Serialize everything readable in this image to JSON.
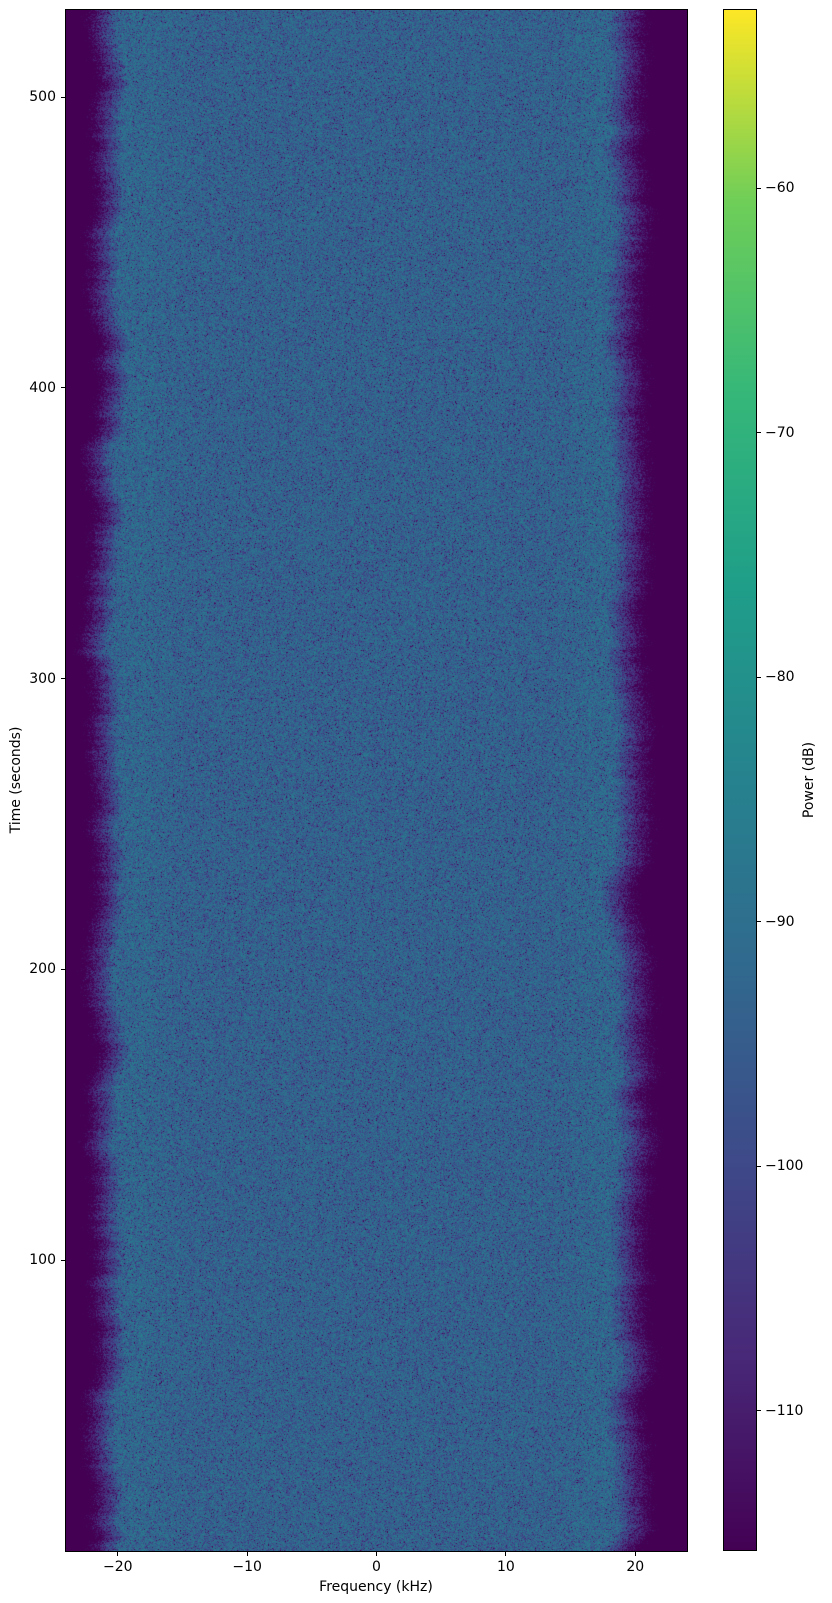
{
  "chart_data": {
    "type": "heatmap",
    "title": "",
    "xlabel": "Frequency (kHz)",
    "ylabel": "Time (seconds)",
    "colorbar_label": "Power (dB)",
    "xlim": [
      -24,
      24
    ],
    "ylim": [
      0,
      530
    ],
    "grid": false,
    "x_ticks": {
      "values": [
        -20,
        -10,
        0,
        10,
        20
      ],
      "labels": [
        "−20",
        "−10",
        "0",
        "10",
        "20"
      ]
    },
    "y_ticks": {
      "values": [
        100,
        200,
        300,
        400,
        500
      ],
      "labels": [
        "100",
        "200",
        "300",
        "400",
        "500"
      ]
    },
    "colorbar": {
      "vmin": -115.7,
      "vmax": -52.7,
      "tick_values": [
        -60,
        -70,
        -80,
        -90,
        -100,
        -110
      ],
      "tick_labels": [
        "−60",
        "−70",
        "−80",
        "−90",
        "−100",
        "−110"
      ],
      "colormap": "viridis",
      "colormap_stops": [
        {
          "t": 0.0,
          "color": "#440154"
        },
        {
          "t": 0.125,
          "color": "#482878"
        },
        {
          "t": 0.25,
          "color": "#3e4989"
        },
        {
          "t": 0.375,
          "color": "#31688e"
        },
        {
          "t": 0.5,
          "color": "#26828e"
        },
        {
          "t": 0.625,
          "color": "#1f9e89"
        },
        {
          "t": 0.75,
          "color": "#35b779"
        },
        {
          "t": 0.875,
          "color": "#6ece58"
        },
        {
          "t": 1.0,
          "color": "#fde725"
        }
      ]
    },
    "heatmap_model": {
      "passband_level_db": -91.5,
      "left_pass_khz": -19.9,
      "left_slope_db_per_khz": 11,
      "right_pass_khz": 18.0,
      "right_slope_db_per_khz": 9,
      "bump_left_khz": -18.5,
      "bump_right_khz": 17.5,
      "bump_db": 1.3,
      "bump_sigma_khz": 1.8,
      "edge_wander_khz": 1.0,
      "noise": "rayleigh-power speckle, ~6 dB spread"
    }
  },
  "colors": {
    "background": "#ffffff",
    "axis_spine": "#000000",
    "text": "#000000",
    "passband_center": "#33678e",
    "band_edge_dark": "#440154"
  }
}
